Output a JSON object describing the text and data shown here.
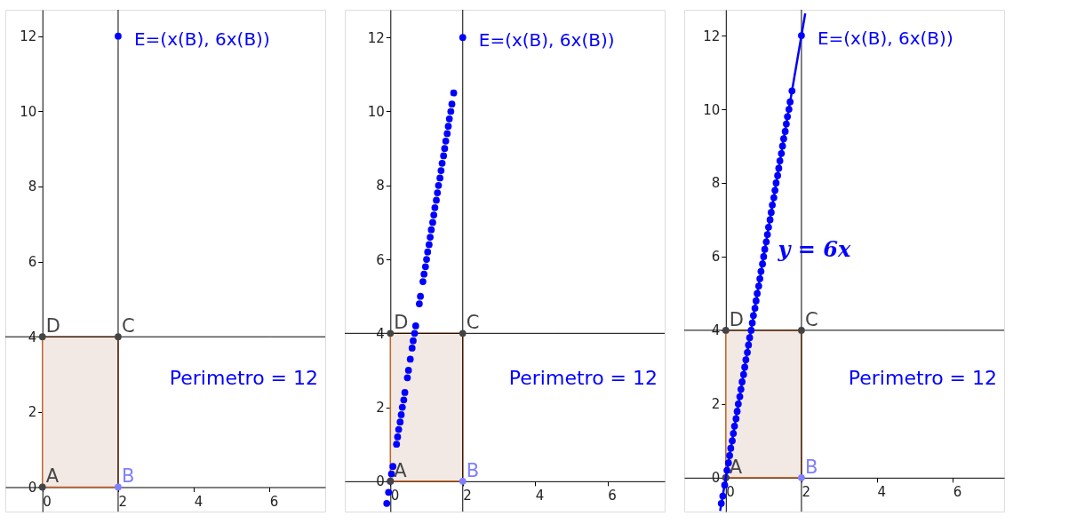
{
  "chart_data": [
    {
      "type": "scatter",
      "xlim": [
        -0.98,
        7.47
      ],
      "ylim": [
        -0.65,
        12.7
      ],
      "xticks": [
        0,
        2,
        4,
        6
      ],
      "yticks": [
        0,
        2,
        4,
        6,
        8,
        10,
        12
      ],
      "grid": false,
      "ref_lines": [
        {
          "axis": "x",
          "value": 2
        },
        {
          "axis": "y",
          "value": 4
        }
      ],
      "series": [
        {
          "type": "area",
          "color": "#f2e9e4",
          "x": [
            0,
            2
          ],
          "values": [
            4,
            4
          ]
        },
        {
          "type": "scatter",
          "x": [
            0,
            2,
            2,
            0
          ],
          "values": [
            0,
            0,
            4,
            4
          ],
          "colors": [
            "#444444",
            "#7f7fff",
            "#444444",
            "#444444"
          ]
        },
        {
          "type": "scatter",
          "x": [
            2
          ],
          "values": [
            12
          ],
          "color": "#0000ff"
        }
      ],
      "annotations": [
        {
          "text": "A",
          "x": 0,
          "y": 0
        },
        {
          "text": "B",
          "x": 2,
          "y": 0
        },
        {
          "text": "C",
          "x": 2,
          "y": 4
        },
        {
          "text": "D",
          "x": 0,
          "y": 4
        },
        {
          "text": "E=(x(B), 6x(B))",
          "x": 2,
          "y": 12
        },
        "Perimetro = 12"
      ]
    },
    {
      "type": "scatter",
      "xlim": [
        -1.26,
        7.58
      ],
      "ylim": [
        -0.82,
        12.75
      ],
      "xticks": [
        0,
        2,
        4,
        6
      ],
      "yticks": [
        0,
        2,
        4,
        6,
        8,
        10,
        12
      ],
      "grid": false,
      "ref_lines": [
        {
          "axis": "x",
          "value": 2
        },
        {
          "axis": "y",
          "value": 4
        }
      ],
      "series": [
        {
          "type": "area",
          "color": "#f2e9e4",
          "x": [
            0,
            2
          ],
          "values": [
            4,
            4
          ]
        },
        {
          "color": "#0000ff",
          "x": [
            -0.1,
            -0.05,
            0,
            0.03,
            0.07,
            0.17,
            0.2,
            0.23,
            0.27,
            0.3,
            0.33,
            0.37,
            0.4,
            0.47,
            0.5,
            0.55,
            0.6,
            0.63,
            0.67,
            0.7,
            0.8,
            0.83,
            0.9,
            0.93,
            0.97,
            1.0,
            1.03,
            1.07,
            1.1,
            1.13,
            1.17,
            1.2,
            1.23,
            1.27,
            1.3,
            1.33,
            1.37,
            1.4,
            1.43,
            1.47,
            1.5,
            1.53,
            1.57,
            1.6,
            1.63,
            1.67,
            1.7,
            1.75
          ],
          "values": [
            -0.6,
            -0.3,
            0,
            0.2,
            0.4,
            1.0,
            1.2,
            1.4,
            1.6,
            1.8,
            2.0,
            2.2,
            2.4,
            2.8,
            3.0,
            3.3,
            3.6,
            3.8,
            4.0,
            4.2,
            4.8,
            5.0,
            5.4,
            5.6,
            5.8,
            6.0,
            6.2,
            6.4,
            6.6,
            6.8,
            7.0,
            7.2,
            7.4,
            7.6,
            7.8,
            8.0,
            8.2,
            8.4,
            8.6,
            8.8,
            9.0,
            9.2,
            9.4,
            9.6,
            9.8,
            10.0,
            10.2,
            10.5
          ]
        },
        {
          "type": "scatter",
          "x": [
            0,
            2,
            2,
            0
          ],
          "values": [
            0,
            0,
            4,
            4
          ],
          "colors": [
            "#444444",
            "#7f7fff",
            "#444444",
            "#444444"
          ]
        },
        {
          "type": "scatter",
          "x": [
            2
          ],
          "values": [
            12
          ],
          "color": "#0000ff"
        }
      ],
      "annotations": [
        {
          "text": "A",
          "x": 0,
          "y": 0
        },
        {
          "text": "B",
          "x": 2,
          "y": 0
        },
        {
          "text": "C",
          "x": 2,
          "y": 4
        },
        {
          "text": "D",
          "x": 0,
          "y": 4
        },
        {
          "text": "E=(x(B), 6x(B))",
          "x": 2,
          "y": 12
        },
        "Perimetro = 12"
      ]
    },
    {
      "type": "scatter",
      "xlim": [
        -1.1,
        7.36
      ],
      "ylim": [
        -0.92,
        12.7
      ],
      "xticks": [
        0,
        2,
        4,
        6
      ],
      "yticks": [
        0,
        2,
        4,
        6,
        8,
        10,
        12
      ],
      "grid": false,
      "ref_lines": [
        {
          "axis": "x",
          "value": 2
        },
        {
          "axis": "y",
          "value": 4
        }
      ],
      "series": [
        {
          "type": "area",
          "color": "#f2e9e4",
          "x": [
            0,
            2
          ],
          "values": [
            4,
            4
          ]
        },
        {
          "type": "line",
          "color": "#0000ff",
          "line_style": "solid",
          "marker": "none",
          "x": [
            -0.15,
            2.1
          ],
          "values": [
            -0.9,
            12.6
          ]
        },
        {
          "color": "#0000ff",
          "x": [
            -0.12,
            -0.08,
            -0.03,
            0,
            0.03,
            0.07,
            0.1,
            0.13,
            0.17,
            0.2,
            0.23,
            0.27,
            0.3,
            0.33,
            0.37,
            0.4,
            0.43,
            0.47,
            0.5,
            0.53,
            0.57,
            0.6,
            0.63,
            0.67,
            0.7,
            0.73,
            0.77,
            0.8,
            0.83,
            0.87,
            0.9,
            0.93,
            0.97,
            1.0,
            1.03,
            1.07,
            1.1,
            1.13,
            1.17,
            1.2,
            1.23,
            1.27,
            1.3,
            1.33,
            1.37,
            1.4,
            1.43,
            1.47,
            1.5,
            1.53,
            1.57,
            1.6,
            1.63,
            1.67,
            1.7,
            1.75
          ],
          "values": [
            -0.7,
            -0.5,
            -0.2,
            0,
            0.2,
            0.4,
            0.6,
            0.8,
            1.0,
            1.2,
            1.4,
            1.6,
            1.8,
            2.0,
            2.2,
            2.4,
            2.6,
            2.8,
            3.0,
            3.2,
            3.4,
            3.6,
            3.8,
            4.0,
            4.2,
            4.4,
            4.6,
            4.8,
            5.0,
            5.2,
            5.4,
            5.6,
            5.8,
            6.0,
            6.2,
            6.4,
            6.6,
            6.8,
            7.0,
            7.2,
            7.4,
            7.6,
            7.8,
            8.0,
            8.2,
            8.4,
            8.6,
            8.8,
            9.0,
            9.2,
            9.4,
            9.6,
            9.8,
            10.0,
            10.2,
            10.5
          ]
        },
        {
          "type": "scatter",
          "x": [
            0,
            2,
            2,
            0
          ],
          "values": [
            0,
            0,
            4,
            4
          ],
          "colors": [
            "#444444",
            "#7f7fff",
            "#444444",
            "#444444"
          ]
        },
        {
          "type": "scatter",
          "x": [
            2
          ],
          "values": [
            12
          ],
          "color": "#0000ff"
        }
      ],
      "annotations": [
        {
          "text": "A",
          "x": 0,
          "y": 0
        },
        {
          "text": "B",
          "x": 2,
          "y": 0
        },
        {
          "text": "C",
          "x": 2,
          "y": 4
        },
        {
          "text": "D",
          "x": 0,
          "y": 4
        },
        {
          "text": "E=(x(B), 6x(B))",
          "x": 2,
          "y": 12
        },
        {
          "text": "y = 6x",
          "x": 1.05,
          "y": 6.3
        },
        "Perimetro = 12"
      ]
    }
  ]
}
